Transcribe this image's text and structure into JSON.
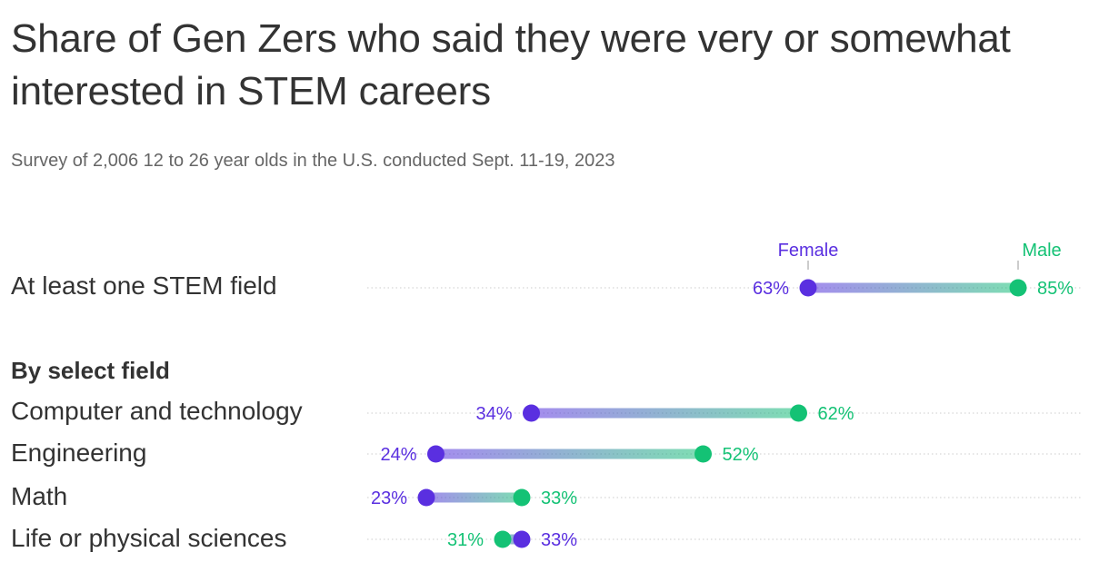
{
  "title": "Share of Gen Zers who said they were very or somewhat interested in STEM careers",
  "subtitle": "Survey of 2,006 12 to 26 year olds in the U.S. conducted Sept. 11-19, 2023",
  "section_label": "By select field",
  "colors": {
    "female": "#5a2fe0",
    "male": "#14c275",
    "text": "#333333",
    "muted": "#666666",
    "grid": "#cccccc"
  },
  "chart_data": {
    "type": "dumbbell",
    "title": "Share of Gen Zers who said they were very or somewhat interested in STEM careers",
    "subtitle": "Survey of 2,006 12 to 26 year olds in the U.S. conducted Sept. 11-19, 2023",
    "series_names": [
      "Female",
      "Male"
    ],
    "value_format": "percent",
    "rows": [
      {
        "label": "At least one STEM field",
        "female": 63,
        "male": 85,
        "female_label": "63%",
        "male_label": "85%",
        "group": ""
      },
      {
        "label": "Computer and technology",
        "female": 34,
        "male": 62,
        "female_label": "34%",
        "male_label": "62%",
        "group": "By select field"
      },
      {
        "label": "Engineering",
        "female": 24,
        "male": 52,
        "female_label": "24%",
        "male_label": "52%",
        "group": "By select field"
      },
      {
        "label": "Math",
        "female": 23,
        "male": 33,
        "female_label": "23%",
        "male_label": "33%",
        "group": "By select field"
      },
      {
        "label": "Life or physical sciences",
        "female": 33,
        "male": 31,
        "female_label": "33%",
        "male_label": "31%",
        "group": "By select field"
      }
    ],
    "legend": {
      "female": "Female",
      "male": "Male",
      "placement": "above first row"
    }
  }
}
